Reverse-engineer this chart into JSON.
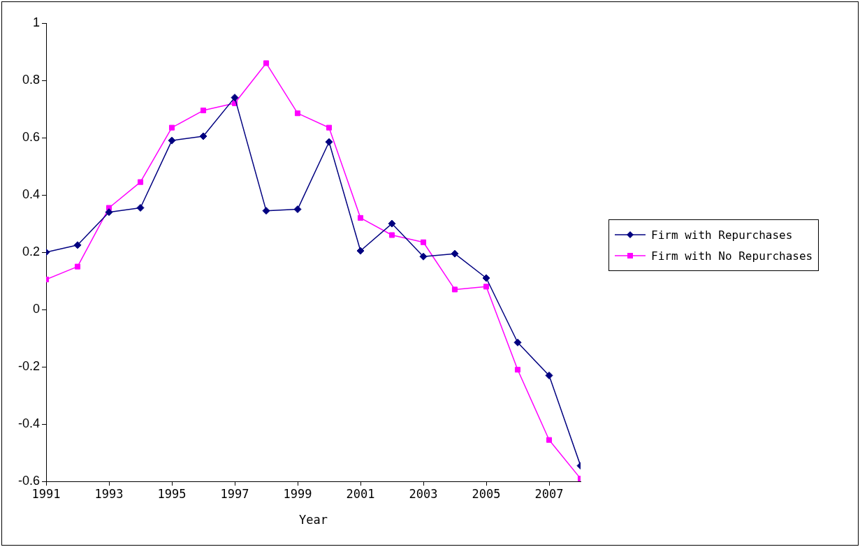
{
  "chart_data": {
    "type": "line",
    "xlabel": "Year",
    "x": [
      1991,
      1992,
      1993,
      1994,
      1995,
      1996,
      1997,
      1998,
      1999,
      2000,
      2001,
      2002,
      2003,
      2004,
      2005,
      2006,
      2007,
      2008
    ],
    "series": [
      {
        "name": "Firm with Repurchases",
        "color": "#000080",
        "marker": "diamond",
        "values": [
          0.2,
          0.225,
          0.34,
          0.355,
          0.59,
          0.605,
          0.74,
          0.345,
          0.35,
          0.585,
          0.205,
          0.3,
          0.185,
          0.195,
          0.11,
          -0.115,
          -0.23,
          -0.545
        ]
      },
      {
        "name": "Firm with No Repurchases",
        "color": "#ff00ff",
        "marker": "square",
        "values": [
          0.105,
          0.15,
          0.355,
          0.445,
          0.635,
          0.695,
          0.72,
          0.86,
          0.685,
          0.635,
          0.32,
          0.26,
          0.235,
          0.07,
          0.08,
          -0.21,
          -0.455,
          -0.59
        ]
      }
    ],
    "xlim": [
      1991,
      2008
    ],
    "xticks": [
      1991,
      1993,
      1995,
      1997,
      1999,
      2001,
      2003,
      2005,
      2007
    ],
    "ylim": [
      -0.6,
      1
    ],
    "yticks": [
      -0.6,
      -0.4,
      -0.2,
      0,
      0.2,
      0.4,
      0.6,
      0.8,
      1
    ],
    "grid": false,
    "legend": "right",
    "line_style": "solid"
  }
}
